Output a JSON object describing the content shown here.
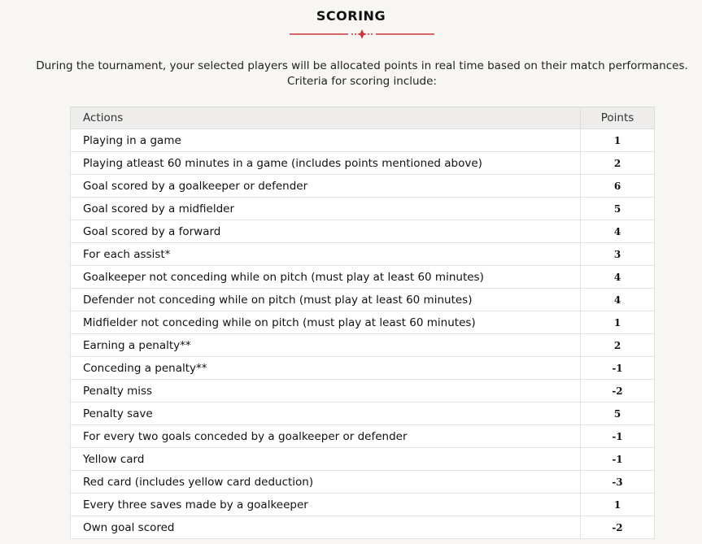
{
  "title": "SCORING",
  "accent": "#d0343c",
  "intro": [
    "During the tournament, your selected players will be allocated points in real time based on their match performances.",
    "Criteria for scoring include:"
  ],
  "table": {
    "headers": [
      "Actions",
      "Points"
    ],
    "rows": [
      [
        "Playing in a game",
        "1"
      ],
      [
        "Playing atleast 60 minutes in a game (includes points mentioned above)",
        "2"
      ],
      [
        "Goal scored by a goalkeeper or defender",
        "6"
      ],
      [
        "Goal scored by a midfielder",
        "5"
      ],
      [
        "Goal scored by a forward",
        "4"
      ],
      [
        "For each assist*",
        "3"
      ],
      [
        "Goalkeeper not conceding while on pitch (must play at least 60 minutes)",
        "4"
      ],
      [
        "Defender not conceding while on pitch (must play at least 60 minutes)",
        "4"
      ],
      [
        "Midfielder not conceding while on pitch (must play at least 60 minutes)",
        "1"
      ],
      [
        "Earning a penalty**",
        "2"
      ],
      [
        "Conceding a penalty**",
        "-1"
      ],
      [
        "Penalty miss",
        "-2"
      ],
      [
        "Penalty save",
        "5"
      ],
      [
        "For every two goals conceded by a goalkeeper or defender",
        "-1"
      ],
      [
        "Yellow card",
        "-1"
      ],
      [
        "Red card (includes yellow card deduction)",
        "-3"
      ],
      [
        "Every three saves made by a goalkeeper",
        "1"
      ],
      [
        "Own goal scored",
        "-2"
      ]
    ]
  }
}
